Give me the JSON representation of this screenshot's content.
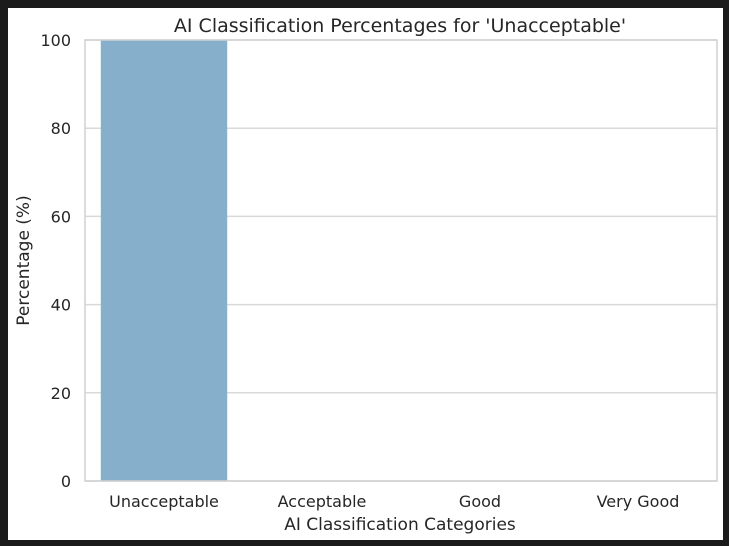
{
  "chart_data": {
    "type": "bar",
    "title": "AI Classification Percentages for 'Unacceptable'",
    "xlabel": "AI Classification Categories",
    "ylabel": "Percentage (%)",
    "categories": [
      "Unacceptable",
      "Acceptable",
      "Good",
      "Very Good"
    ],
    "values": [
      100,
      0,
      0,
      0
    ],
    "ylim": [
      0,
      100
    ],
    "yticks": [
      0,
      20,
      40,
      60,
      80,
      100
    ],
    "grid": "horizontal",
    "bar_color": "#86afcc",
    "legend": "none"
  }
}
